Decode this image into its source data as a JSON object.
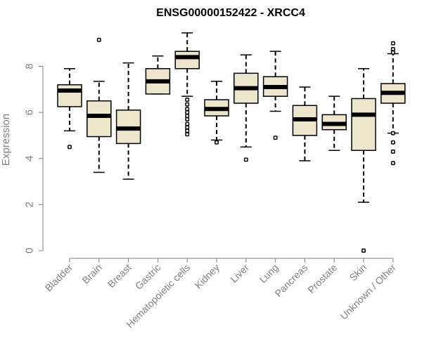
{
  "chart_data": {
    "type": "boxplot",
    "title": "ENSG00000152422 - XRCC4",
    "xlabel": "",
    "ylabel": "Expression",
    "ylim": [
      0,
      9.6
    ],
    "yticks": [
      0,
      2,
      4,
      6,
      8
    ],
    "grid": false,
    "box_fill": "#ede6cd",
    "box_stroke": "#000000",
    "categories": [
      "Bladder",
      "Brain",
      "Breast",
      "Gastric",
      "Hematopoietic cells",
      "Kidney",
      "Liver",
      "Lung",
      "Pancreas",
      "Prostate",
      "Skin",
      "Unknown / Other"
    ],
    "boxes": [
      {
        "whisker_low": 5.2,
        "q1": 6.25,
        "median": 6.95,
        "q3": 7.2,
        "whisker_high": 7.9,
        "outliers": [
          4.5
        ]
      },
      {
        "whisker_low": 3.4,
        "q1": 4.95,
        "median": 5.85,
        "q3": 6.5,
        "whisker_high": 7.35,
        "outliers": [
          9.15
        ]
      },
      {
        "whisker_low": 3.1,
        "q1": 4.65,
        "median": 5.3,
        "q3": 6.1,
        "whisker_high": 8.15,
        "outliers": []
      },
      {
        "whisker_low": 6.8,
        "q1": 6.8,
        "median": 7.35,
        "q3": 7.9,
        "whisker_high": 8.45,
        "outliers": []
      },
      {
        "whisker_low": 6.7,
        "q1": 7.9,
        "median": 8.4,
        "q3": 8.65,
        "whisker_high": 9.45,
        "outliers": [
          6.55,
          6.35,
          6.15,
          6.0,
          5.85,
          5.7,
          5.5,
          5.35,
          5.2,
          5.05
        ]
      },
      {
        "whisker_low": 4.8,
        "q1": 5.85,
        "median": 6.15,
        "q3": 6.55,
        "whisker_high": 7.35,
        "outliers": [
          4.7
        ]
      },
      {
        "whisker_low": 4.5,
        "q1": 6.4,
        "median": 7.05,
        "q3": 7.7,
        "whisker_high": 8.5,
        "outliers": [
          3.95
        ]
      },
      {
        "whisker_low": 6.05,
        "q1": 6.7,
        "median": 7.1,
        "q3": 7.55,
        "whisker_high": 8.65,
        "outliers": [
          4.9
        ]
      },
      {
        "whisker_low": 3.9,
        "q1": 5.0,
        "median": 5.7,
        "q3": 6.3,
        "whisker_high": 7.1,
        "outliers": []
      },
      {
        "whisker_low": 4.35,
        "q1": 5.25,
        "median": 5.5,
        "q3": 5.9,
        "whisker_high": 6.7,
        "outliers": []
      },
      {
        "whisker_low": 2.1,
        "q1": 4.35,
        "median": 5.9,
        "q3": 6.6,
        "whisker_high": 7.9,
        "outliers": [
          0.0
        ]
      },
      {
        "whisker_low": 5.1,
        "q1": 6.4,
        "median": 6.85,
        "q3": 7.25,
        "whisker_high": 8.55,
        "outliers": [
          9.0,
          8.75,
          8.6,
          5.1,
          4.7,
          4.3,
          3.8
        ]
      }
    ]
  }
}
